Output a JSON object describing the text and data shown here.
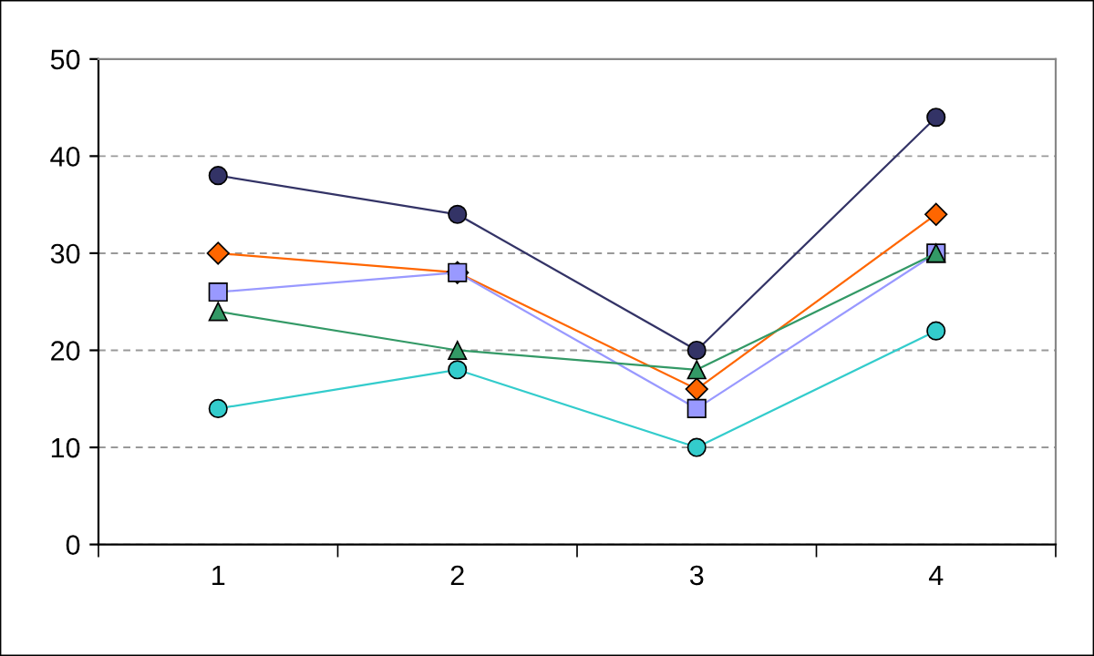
{
  "chart_data": {
    "type": "line",
    "categories": [
      "1",
      "2",
      "3",
      "4"
    ],
    "series": [
      {
        "color": "#333366",
        "marker": "circle",
        "values": [
          38,
          34,
          20,
          44
        ]
      },
      {
        "color": "#ff6600",
        "marker": "diamond",
        "values": [
          30,
          28,
          16,
          34
        ]
      },
      {
        "color": "#9999ff",
        "marker": "square",
        "values": [
          26,
          28,
          14,
          30
        ]
      },
      {
        "color": "#339966",
        "marker": "triangle",
        "values": [
          24,
          20,
          18,
          30
        ]
      },
      {
        "color": "#33cccc",
        "marker": "circle",
        "values": [
          14,
          18,
          10,
          22
        ]
      }
    ],
    "ylim": [
      0,
      50
    ],
    "yticks": [
      0,
      10,
      20,
      30,
      40,
      50
    ],
    "grid": "y",
    "legend": false,
    "line_style": "solid"
  }
}
